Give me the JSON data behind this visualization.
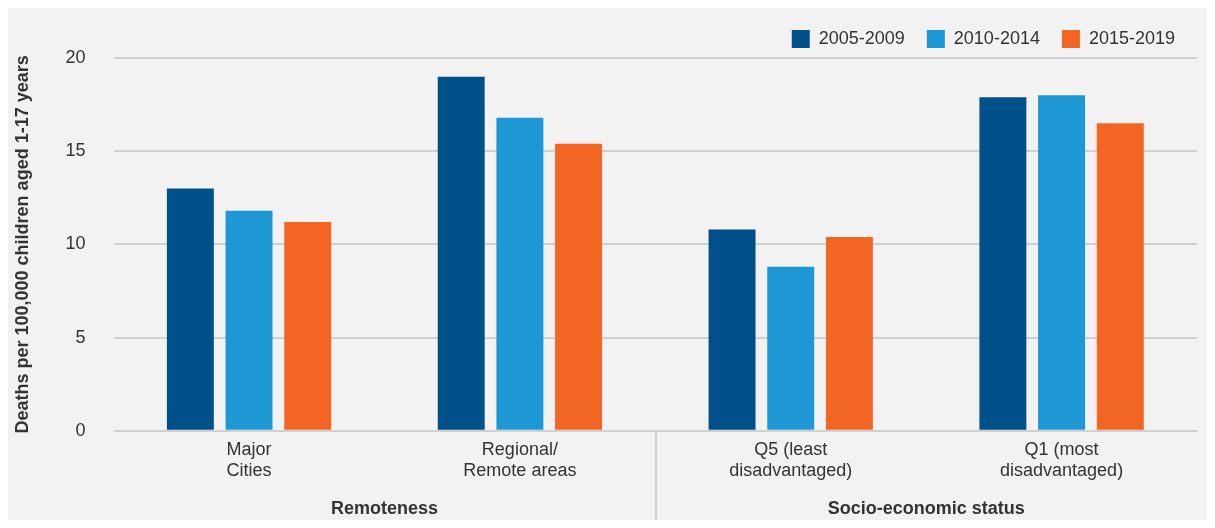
{
  "chart_data": {
    "type": "bar",
    "ylabel": "Deaths per 100,000 children aged 1-17 years",
    "categories": [
      "Major\nCities",
      "Regional/\nRemote areas",
      "Q5 (least\ndisadvantaged)",
      "Q1 (most\ndisadvantaged)"
    ],
    "series": [
      {
        "name": "2005-2009",
        "color": "#00508a",
        "values": [
          13.0,
          19.0,
          10.8,
          17.9
        ]
      },
      {
        "name": "2010-2014",
        "color": "#1e98d5",
        "values": [
          11.8,
          16.8,
          8.8,
          18.0
        ]
      },
      {
        "name": "2015-2019",
        "color": "#f26522",
        "values": [
          11.2,
          15.4,
          10.4,
          16.5
        ]
      }
    ],
    "ylim": [
      0,
      20
    ],
    "yticks": [
      0,
      5,
      10,
      15,
      20
    ],
    "grid": "y",
    "legend": "top right",
    "annotations": [
      "Remoteness",
      "Socio-economic status"
    ]
  }
}
